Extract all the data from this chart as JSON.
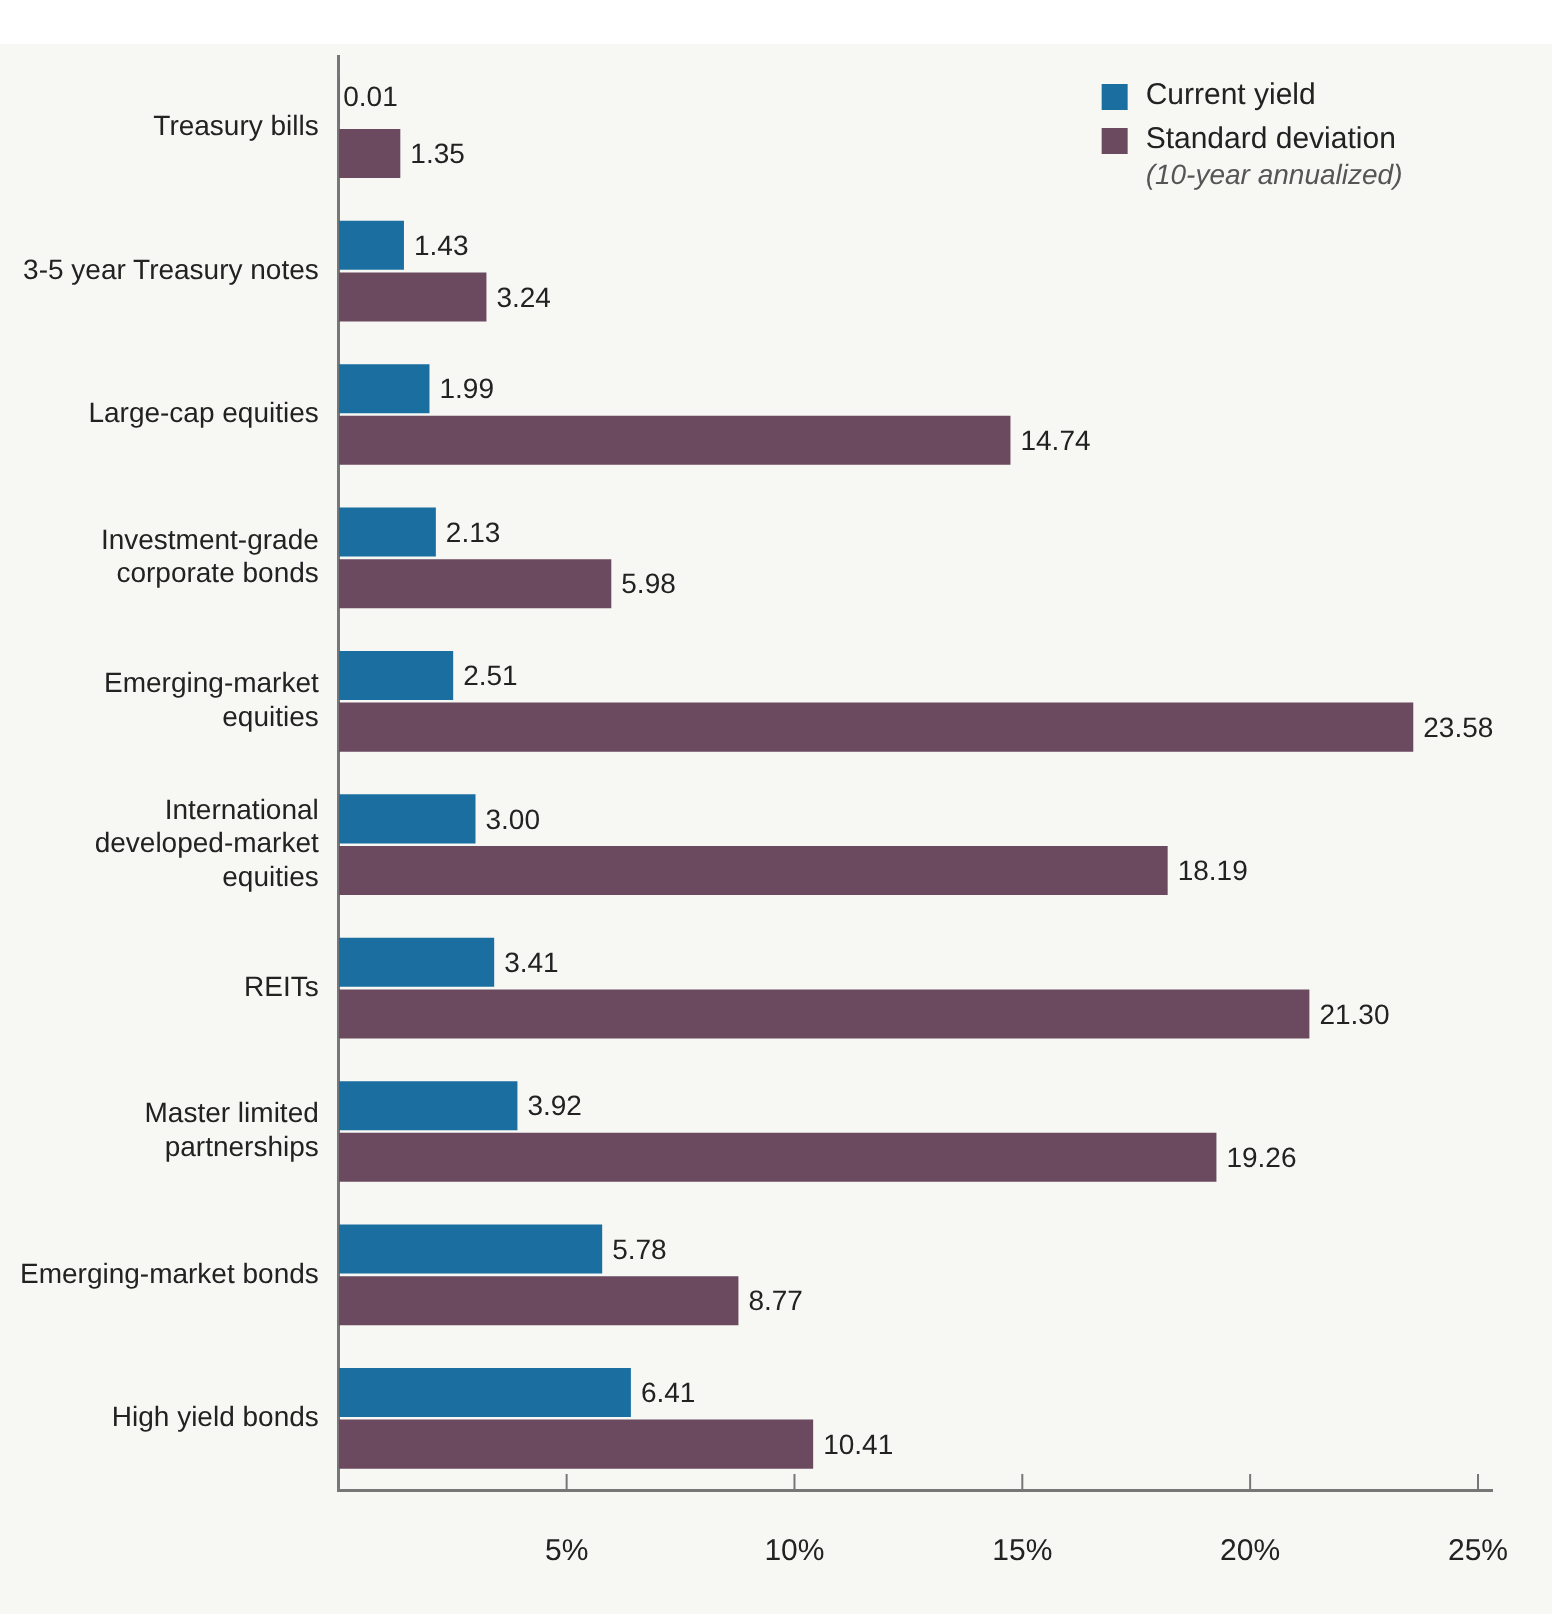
{
  "chart_data": {
    "type": "bar",
    "orientation": "horizontal",
    "categories": [
      "Treasury bills",
      "3-5 year Treasury notes",
      "Large-cap equities",
      "Investment-grade corporate bonds",
      "Emerging-market equities",
      "International developed-market equities",
      "REITs",
      "Master limited partnerships",
      "Emerging-market bonds",
      "High yield bonds"
    ],
    "series": [
      {
        "name": "Current yield",
        "color": "#1a6fa0",
        "values": [
          0.01,
          1.43,
          1.99,
          2.13,
          2.51,
          3.0,
          3.41,
          3.92,
          5.78,
          6.41
        ],
        "value_labels": [
          "0.01",
          "1.43",
          "1.99",
          "2.13",
          "2.51",
          "3.00",
          "3.41",
          "3.92",
          "5.78",
          "6.41"
        ]
      },
      {
        "name": "Standard deviation",
        "color": "#6b4a60",
        "values": [
          1.35,
          3.24,
          14.74,
          5.98,
          23.58,
          18.19,
          21.3,
          19.26,
          8.77,
          10.41
        ],
        "value_labels": [
          "1.35",
          "3.24",
          "14.74",
          "5.98",
          "23.58",
          "18.19",
          "21.30",
          "19.26",
          "8.77",
          "10.41"
        ]
      }
    ],
    "xlim": [
      0,
      25.3
    ],
    "xticks": [
      {
        "value": 5,
        "label": "5%"
      },
      {
        "value": 10,
        "label": "10%"
      },
      {
        "value": 15,
        "label": "15%"
      },
      {
        "value": 20,
        "label": "20%"
      },
      {
        "value": 25,
        "label": "25%"
      }
    ],
    "annotations": [
      "(10-year annualized)"
    ],
    "legend": "top right"
  }
}
